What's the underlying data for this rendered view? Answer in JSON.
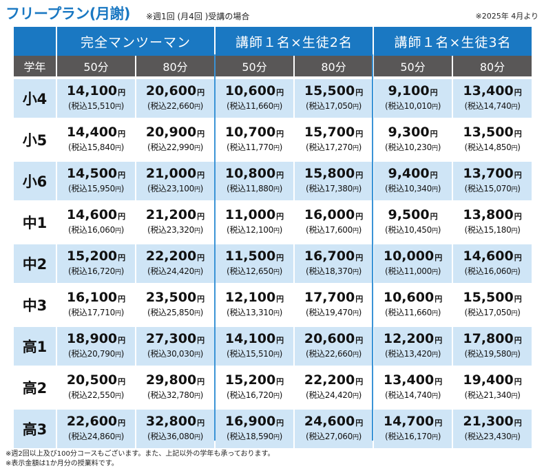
{
  "title": "フリープラン(月謝)",
  "subtitle": "※週1回 (月4回 )受講の場合",
  "date_note": "※2025年 4月より",
  "groups": [
    "完全マンツーマン",
    "講師１名×生徒2名",
    "講師１名×生徒3名"
  ],
  "grade_header": "学年",
  "durations": [
    "50分",
    "80分",
    "50分",
    "80分",
    "50分",
    "80分"
  ],
  "yen": "円",
  "tax_prefix": "(税込",
  "tax_suffix": ")",
  "rows": [
    {
      "grade": "小4",
      "prices": [
        [
          "14,100",
          "15,510"
        ],
        [
          "20,600",
          "22,660"
        ],
        [
          "10,600",
          "11,660"
        ],
        [
          "15,500",
          "17,050"
        ],
        [
          "9,100",
          "10,010"
        ],
        [
          "13,400",
          "14,740"
        ]
      ]
    },
    {
      "grade": "小5",
      "prices": [
        [
          "14,400",
          "15,840"
        ],
        [
          "20,900",
          "22,990"
        ],
        [
          "10,700",
          "11,770"
        ],
        [
          "15,700",
          "17,270"
        ],
        [
          "9,300",
          "10,230"
        ],
        [
          "13,500",
          "14,850"
        ]
      ]
    },
    {
      "grade": "小6",
      "prices": [
        [
          "14,500",
          "15,950"
        ],
        [
          "21,000",
          "23,100"
        ],
        [
          "10,800",
          "11,880"
        ],
        [
          "15,800",
          "17,380"
        ],
        [
          "9,400",
          "10,340"
        ],
        [
          "13,700",
          "15,070"
        ]
      ]
    },
    {
      "grade": "中1",
      "prices": [
        [
          "14,600",
          "16,060"
        ],
        [
          "21,200",
          "23,320"
        ],
        [
          "11,000",
          "12,100"
        ],
        [
          "16,000",
          "17,600"
        ],
        [
          "9,500",
          "10,450"
        ],
        [
          "13,800",
          "15,180"
        ]
      ]
    },
    {
      "grade": "中2",
      "prices": [
        [
          "15,200",
          "16,720"
        ],
        [
          "22,200",
          "24,420"
        ],
        [
          "11,500",
          "12,650"
        ],
        [
          "16,700",
          "18,370"
        ],
        [
          "10,000",
          "11,000"
        ],
        [
          "14,600",
          "16,060"
        ]
      ]
    },
    {
      "grade": "中3",
      "prices": [
        [
          "16,100",
          "17,710"
        ],
        [
          "23,500",
          "25,850"
        ],
        [
          "12,100",
          "13,310"
        ],
        [
          "17,700",
          "19,470"
        ],
        [
          "10,600",
          "11,660"
        ],
        [
          "15,500",
          "17,050"
        ]
      ]
    },
    {
      "grade": "高1",
      "prices": [
        [
          "18,900",
          "20,790"
        ],
        [
          "27,300",
          "30,030"
        ],
        [
          "14,100",
          "15,510"
        ],
        [
          "20,600",
          "22,660"
        ],
        [
          "12,200",
          "13,420"
        ],
        [
          "17,800",
          "19,580"
        ]
      ]
    },
    {
      "grade": "高2",
      "prices": [
        [
          "20,500",
          "22,550"
        ],
        [
          "29,800",
          "32,780"
        ],
        [
          "15,200",
          "16,720"
        ],
        [
          "22,200",
          "24,420"
        ],
        [
          "13,400",
          "14,740"
        ],
        [
          "19,400",
          "21,340"
        ]
      ]
    },
    {
      "grade": "高3",
      "prices": [
        [
          "22,600",
          "24,860"
        ],
        [
          "32,800",
          "36,080"
        ],
        [
          "16,900",
          "18,590"
        ],
        [
          "24,600",
          "27,060"
        ],
        [
          "14,700",
          "16,170"
        ],
        [
          "21,300",
          "23,430"
        ]
      ]
    }
  ],
  "footnotes": [
    "※週2回以上及び100分コースもございます。また、上記以外の学年も承っております。",
    "※表示金額は1か月分の授業料です。"
  ]
}
